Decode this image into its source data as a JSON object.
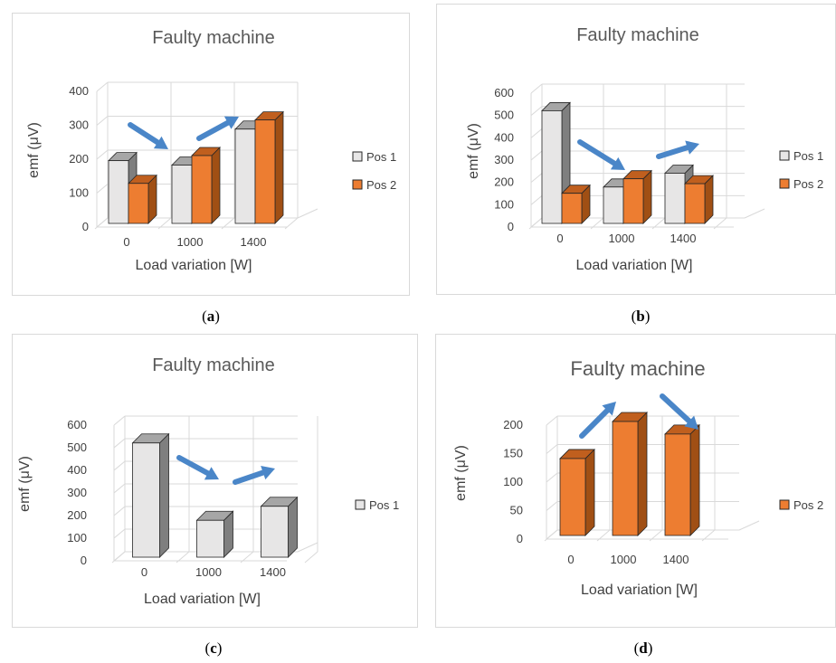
{
  "panels": [
    {
      "caption": "a",
      "chart_data": {
        "type": "bar",
        "title": "Faulty machine",
        "xlabel": "Load variation  [W]",
        "ylabel": "emf (μV)",
        "categories": [
          "0",
          "1000",
          "1400"
        ],
        "series": [
          {
            "name": "Pos 1",
            "values": [
              185,
              172,
              278
            ],
            "color": "#e7e6e6"
          },
          {
            "name": "Pos 2",
            "values": [
              118,
              200,
              305
            ],
            "color": "#ed7d31"
          }
        ],
        "ylim": [
          0,
          400
        ],
        "yticks": [
          0,
          100,
          200,
          300,
          400
        ],
        "grid": true,
        "legend": "right",
        "annotations": [
          "arrow-down",
          "arrow-up"
        ]
      }
    },
    {
      "caption": "b",
      "chart_data": {
        "type": "bar",
        "title": "Faulty machine",
        "xlabel": "Load variation  [W]",
        "ylabel": "emf (μV)",
        "categories": [
          "0",
          "1000",
          "1400"
        ],
        "series": [
          {
            "name": "Pos 1",
            "values": [
              505,
              163,
              225
            ],
            "color": "#e7e6e6"
          },
          {
            "name": "Pos 2",
            "values": [
              135,
              200,
              178
            ],
            "color": "#ed7d31"
          }
        ],
        "ylim": [
          0,
          600
        ],
        "yticks": [
          0,
          100,
          200,
          300,
          400,
          500,
          600
        ],
        "grid": true,
        "legend": "right",
        "annotations": [
          "arrow-down",
          "arrow-up"
        ]
      }
    },
    {
      "caption": "c",
      "chart_data": {
        "type": "bar",
        "title": "Faulty machine",
        "xlabel": "Load variation  [W]",
        "ylabel": "emf (μV)",
        "categories": [
          "0",
          "1000",
          "1400"
        ],
        "series": [
          {
            "name": "Pos 1",
            "values": [
              505,
              163,
              225
            ],
            "color": "#e7e6e6"
          }
        ],
        "ylim": [
          0,
          600
        ],
        "yticks": [
          0,
          100,
          200,
          300,
          400,
          500,
          600
        ],
        "grid": true,
        "legend": "right",
        "annotations": [
          "arrow-down",
          "arrow-up"
        ]
      }
    },
    {
      "caption": "d",
      "chart_data": {
        "type": "bar",
        "title": "Faulty machine",
        "xlabel": "Load variation  [W]",
        "ylabel": "emf (μV)",
        "categories": [
          "0",
          "1000",
          "1400"
        ],
        "series": [
          {
            "name": "Pos 2",
            "values": [
              135,
              200,
              178
            ],
            "color": "#ed7d31"
          }
        ],
        "ylim": [
          0,
          200
        ],
        "yticks": [
          0,
          50,
          100,
          150,
          200
        ],
        "grid": true,
        "legend": "right",
        "annotations": [
          "arrow-up",
          "arrow-down"
        ]
      }
    }
  ]
}
